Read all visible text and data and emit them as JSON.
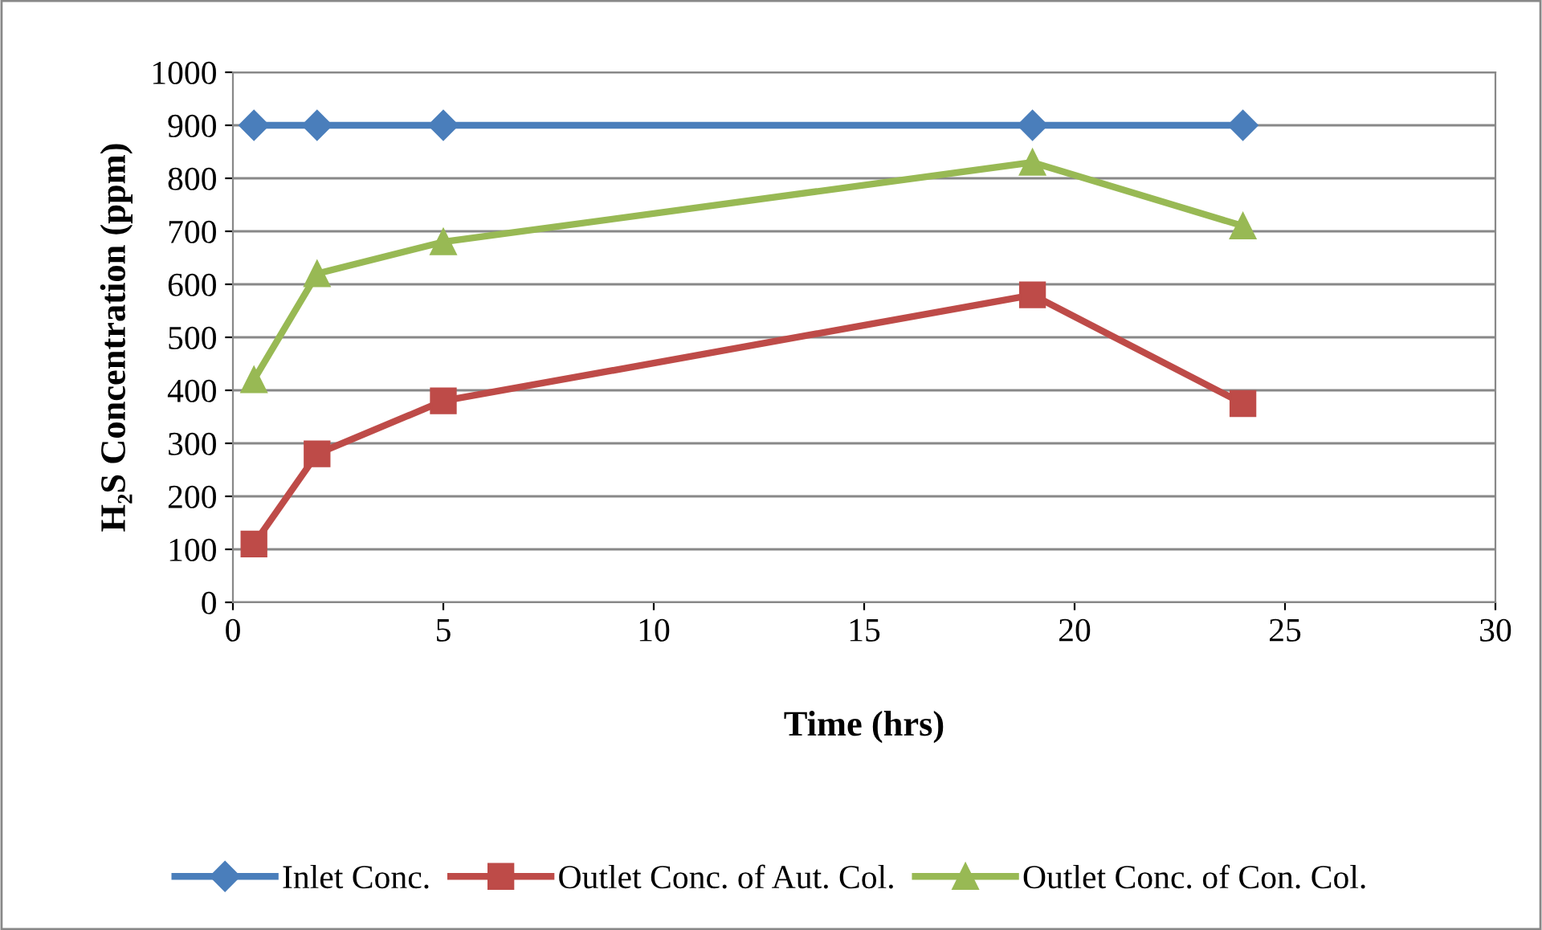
{
  "chart_data": {
    "type": "line",
    "xlabel": "Time (hrs)",
    "ylabel": "H₂S Concentration (ppm)",
    "x": [
      0.5,
      2,
      5,
      19,
      24
    ],
    "series": [
      {
        "name": "Inlet Conc.",
        "color": "#4a7ebb",
        "marker": "diamond",
        "values": [
          900,
          900,
          900,
          900,
          900
        ]
      },
      {
        "name": "Outlet Conc. of Aut. Col.",
        "color": "#be4b48",
        "marker": "square",
        "values": [
          110,
          280,
          380,
          580,
          375
        ]
      },
      {
        "name": "Outlet Conc. of Con. Col.",
        "color": "#98b954",
        "marker": "triangle",
        "values": [
          420,
          620,
          680,
          830,
          710
        ]
      }
    ],
    "xlim": [
      0,
      30
    ],
    "xticks": [
      0,
      5,
      10,
      15,
      20,
      25,
      30
    ],
    "ylim": [
      0,
      1000
    ],
    "yticks": [
      0,
      100,
      200,
      300,
      400,
      500,
      600,
      700,
      800,
      900,
      1000
    ],
    "grid": "y",
    "legend": "bottom",
    "line_style": "solid"
  }
}
